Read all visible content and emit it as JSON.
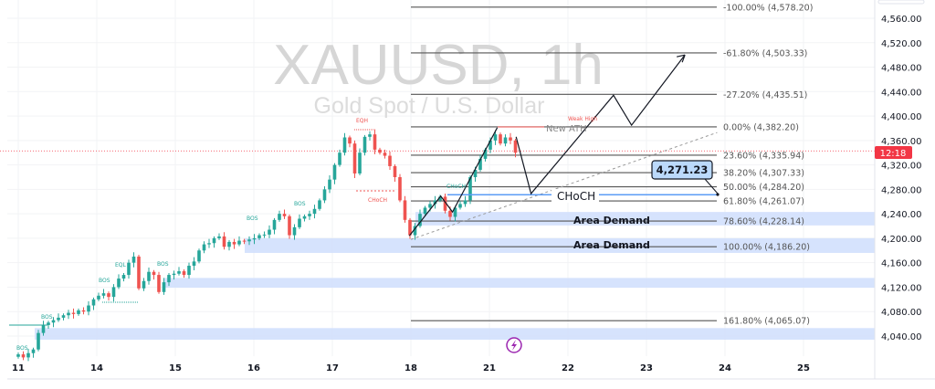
{
  "symbol_watermark": "XAUUSD, 1h",
  "symbol_description": "Gold Spot / U.S. Dollar",
  "countdown": "12:18",
  "price_callout": "4,271.23",
  "colors": {
    "up": "#26a69a",
    "down": "#ef5350",
    "zone": "#d1e0fd",
    "countdown_bg": "#f23645",
    "choch_line": "#5b9cf6",
    "callout_bg": "#bbd9fb"
  },
  "chart_data": {
    "type": "candlestick",
    "interval": "1h",
    "y_axis": {
      "ticks": [
        4040,
        4080,
        4120,
        4160,
        4200,
        4240,
        4280,
        4320,
        4360,
        4400,
        4440,
        4480,
        4520,
        4560
      ],
      "tick_labels": [
        "4,040.00",
        "4,080.00",
        "4,120.00",
        "4,160.00",
        "4,200.00",
        "4,240.00",
        "4,280.00",
        "4,320.00",
        "4,360.00",
        "4,400.00",
        "4,440.00",
        "4,480.00",
        "4,520.00",
        "4,560.00"
      ],
      "range": [
        4000,
        4585
      ],
      "position": "right"
    },
    "x_axis": {
      "tick_labels": [
        "11",
        "14",
        "15",
        "16",
        "17",
        "18",
        "21",
        "22",
        "23",
        "24",
        "25"
      ]
    },
    "grid": true,
    "closes": [
      4010,
      4005,
      4012,
      4018,
      4045,
      4058,
      4062,
      4066,
      4070,
      4074,
      4078,
      4076,
      4082,
      4080,
      4090,
      4100,
      4106,
      4110,
      4104,
      4120,
      4134,
      4140,
      4160,
      4170,
      4118,
      4130,
      4145,
      4140,
      4112,
      4128,
      4140,
      4142,
      4146,
      4140,
      4155,
      4162,
      4180,
      4190,
      4192,
      4200,
      4203,
      4186,
      4194,
      4190,
      4196,
      4195,
      4198,
      4200,
      4205,
      4206,
      4214,
      4230,
      4240,
      4236,
      4205,
      4218,
      4232,
      4236,
      4240,
      4248,
      4262,
      4280,
      4296,
      4320,
      4340,
      4365,
      4355,
      4306,
      4340,
      4366,
      4370,
      4345,
      4340,
      4335,
      4318,
      4300,
      4262,
      4230,
      4205,
      4220,
      4240,
      4250,
      4256,
      4262,
      4268,
      4245,
      4235,
      4250,
      4256,
      4262,
      4300,
      4312,
      4330,
      4345,
      4360,
      4370,
      4355,
      4365,
      4360,
      4340
    ],
    "current_price": 4343,
    "fib_levels": [
      {
        "label": "-100.00% (4,578.20)",
        "price": 4578.2
      },
      {
        "label": "-61.80% (4,503.33)",
        "price": 4503.33
      },
      {
        "label": "-27.20% (4,435.51)",
        "price": 4435.51
      },
      {
        "label": "0.00% (4,382.20)",
        "price": 4382.2
      },
      {
        "label": "23.60% (4,335.94)",
        "price": 4335.94
      },
      {
        "label": "38.20% (4,307.33)",
        "price": 4307.33
      },
      {
        "label": "50.00% (4,284.20)",
        "price": 4284.2
      },
      {
        "label": "61.80% (4,261.07)",
        "price": 4261.07
      },
      {
        "label": "78.60% (4,228.14)",
        "price": 4228.14
      },
      {
        "label": "100.00% (4,186.20)",
        "price": 4186.2
      },
      {
        "label": "161.80% (4,065.07)",
        "price": 4065.07
      }
    ],
    "demand_zones": [
      {
        "label": "Area Demand",
        "top": 4243,
        "bottom": 4221
      },
      {
        "label": "Area Demand",
        "top": 4200,
        "bottom": 4176
      },
      {
        "label": "",
        "top": 4135,
        "bottom": 4119
      },
      {
        "label": "",
        "top": 4053,
        "bottom": 4034
      }
    ],
    "choch_level": {
      "label": "CHoCH",
      "price": 4271.23
    },
    "ath": {
      "label": "New ATH",
      "sub_label": "Weak High",
      "price": 4382.2
    },
    "annotations": {
      "bos": "BOS",
      "eql": "EQL",
      "eqh": "EQH",
      "choch": "CHoCH"
    },
    "projection_path": [
      {
        "day": 6.34,
        "price": 4366
      },
      {
        "day": 6.53,
        "price": 4273
      },
      {
        "day": 7.58,
        "price": 4434
      },
      {
        "day": 7.81,
        "price": 4385
      },
      {
        "day": 8.49,
        "price": 4500
      }
    ],
    "swing_path": [
      {
        "day": 4.98,
        "price": 4204
      },
      {
        "day": 5.38,
        "price": 4269
      },
      {
        "day": 5.53,
        "price": 4243
      },
      {
        "day": 6.1,
        "price": 4381
      }
    ],
    "trendline": [
      {
        "day": 5.0,
        "price": 4198
      },
      {
        "day": 8.9,
        "price": 4373
      }
    ]
  }
}
